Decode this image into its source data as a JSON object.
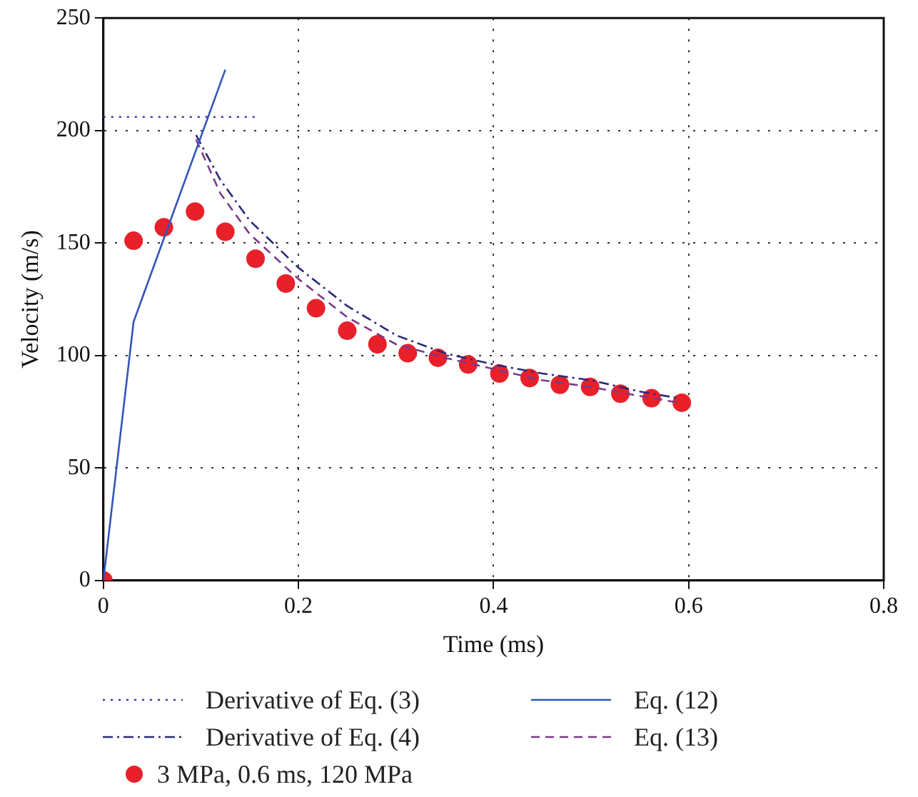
{
  "chart_data": {
    "type": "line",
    "xlabel": "Time (ms)",
    "ylabel": "Velocity (m/s)",
    "xlim": [
      0,
      0.8
    ],
    "xticks": [
      0,
      0.2,
      0.4,
      0.6,
      0.8
    ],
    "ylim": [
      0,
      250
    ],
    "yticks": [
      0,
      50,
      100,
      150,
      200,
      250
    ],
    "grid": true,
    "legend": "bottom",
    "series": [
      {
        "name": "Derivative of Eq. (3)",
        "type": "line",
        "line_style": "dotted",
        "marker": "none",
        "color": "#3a3aa8",
        "x": [
          0,
          0.157
        ],
        "values": [
          206,
          206
        ]
      },
      {
        "name": "Eq. (12)",
        "type": "line",
        "line_style": "solid",
        "marker": "none",
        "color": "#3355bb",
        "x": [
          0,
          0.031,
          0.125
        ],
        "values": [
          0,
          115,
          227
        ]
      },
      {
        "name": "Derivative of Eq. (4)",
        "type": "line",
        "line_style": "dashdot",
        "marker": "none",
        "color": "#2a2a7a",
        "x": [
          0.095,
          0.12,
          0.15,
          0.2,
          0.25,
          0.3,
          0.35,
          0.4,
          0.45,
          0.5,
          0.55,
          0.59
        ],
        "values": [
          198,
          178,
          160,
          139,
          122,
          109,
          101,
          96,
          92,
          89,
          84,
          81
        ]
      },
      {
        "name": "Eq. (13)",
        "type": "line",
        "line_style": "dashed",
        "marker": "none",
        "color": "#7a3a8a",
        "x": [
          0.095,
          0.12,
          0.15,
          0.2,
          0.25,
          0.3,
          0.35,
          0.4,
          0.45,
          0.5,
          0.55,
          0.59
        ],
        "values": [
          196,
          172,
          154,
          134,
          117,
          105,
          99,
          94,
          89,
          86,
          82,
          79
        ]
      },
      {
        "name": "3 MPa, 0.6 ms, 120 MPa",
        "type": "scatter",
        "marker": "circle",
        "color": "#e8202a",
        "x": [
          0,
          0.031,
          0.062,
          0.094,
          0.125,
          0.156,
          0.187,
          0.218,
          0.25,
          0.281,
          0.312,
          0.343,
          0.374,
          0.406,
          0.437,
          0.468,
          0.499,
          0.53,
          0.562,
          0.593
        ],
        "values": [
          0,
          151,
          157,
          164,
          155,
          143,
          132,
          121,
          111,
          105,
          101,
          99,
          96,
          92,
          90,
          87,
          86,
          83,
          81,
          79
        ]
      }
    ]
  }
}
